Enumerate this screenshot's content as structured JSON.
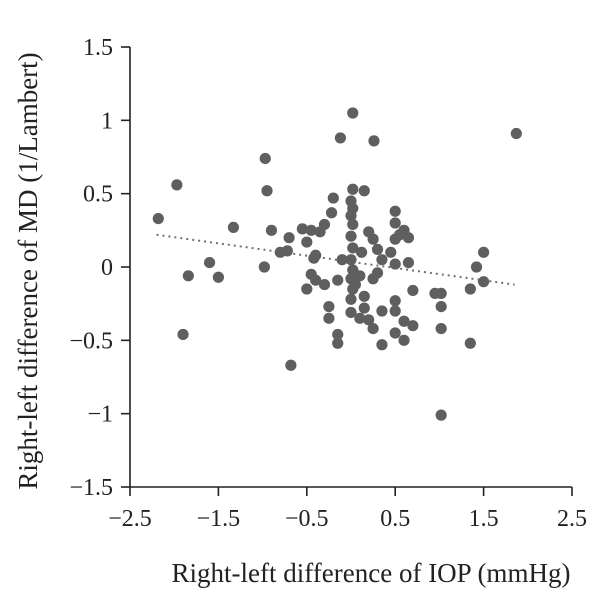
{
  "chart_data": {
    "type": "scatter",
    "xlabel": "Right-left difference of IOP (mmHg)",
    "ylabel": "Right-left difference of MD (1/Lambert)",
    "xlim": [
      -2.5,
      2.5
    ],
    "ylim": [
      -1.5,
      1.5
    ],
    "x_ticks": [
      -2.5,
      -1.5,
      -0.5,
      0.5,
      1.5,
      2.5
    ],
    "y_ticks": [
      1.5,
      1,
      0.5,
      0,
      -0.5,
      -1,
      -1.5
    ],
    "x_tick_labels": [
      "−2.5",
      "−1.5",
      "−0.5",
      "0.5",
      "1.5",
      "2.5"
    ],
    "y_tick_labels": [
      "1.5",
      "1",
      "0.5",
      "0",
      "−0.5",
      "−1",
      "−1.5"
    ],
    "grid": false,
    "trendline": {
      "style": "dotted",
      "x": [
        -2.2,
        1.85
      ],
      "y": [
        0.22,
        -0.12
      ]
    },
    "series": [
      {
        "color": "#5f5f5f",
        "points": [
          [
            0.02,
            1.05
          ],
          [
            -0.12,
            0.88
          ],
          [
            0.26,
            0.86
          ],
          [
            1.87,
            0.91
          ],
          [
            -0.97,
            0.74
          ],
          [
            -1.97,
            0.56
          ],
          [
            -0.95,
            0.52
          ],
          [
            -2.18,
            0.33
          ],
          [
            -1.33,
            0.27
          ],
          [
            -0.9,
            0.25
          ],
          [
            -1.6,
            0.03
          ],
          [
            -1.84,
            -0.06
          ],
          [
            -1.5,
            -0.07
          ],
          [
            -1.9,
            -0.46
          ],
          [
            -0.68,
            -0.67
          ],
          [
            -0.98,
            0.0
          ],
          [
            -0.8,
            0.1
          ],
          [
            -0.72,
            0.11
          ],
          [
            -0.7,
            0.2
          ],
          [
            -0.55,
            0.26
          ],
          [
            -0.45,
            0.25
          ],
          [
            -0.5,
            0.17
          ],
          [
            -0.42,
            0.06
          ],
          [
            -0.4,
            0.08
          ],
          [
            -0.35,
            0.24
          ],
          [
            -0.3,
            0.29
          ],
          [
            -0.22,
            0.37
          ],
          [
            -0.2,
            0.47
          ],
          [
            -0.25,
            -0.27
          ],
          [
            -0.15,
            -0.09
          ],
          [
            -0.1,
            0.05
          ],
          [
            -0.3,
            -0.12
          ],
          [
            -0.25,
            -0.35
          ],
          [
            -0.15,
            -0.46
          ],
          [
            -0.15,
            -0.52
          ],
          [
            -0.45,
            -0.05
          ],
          [
            -0.5,
            -0.15
          ],
          [
            -0.4,
            -0.09
          ],
          [
            0.02,
            0.53
          ],
          [
            0.0,
            0.45
          ],
          [
            0.02,
            0.4
          ],
          [
            0.0,
            0.35
          ],
          [
            0.02,
            0.29
          ],
          [
            0.0,
            0.21
          ],
          [
            0.02,
            0.13
          ],
          [
            0.0,
            0.05
          ],
          [
            0.02,
            -0.02
          ],
          [
            0.0,
            -0.08
          ],
          [
            0.02,
            -0.15
          ],
          [
            0.0,
            -0.22
          ],
          [
            0.0,
            -0.31
          ],
          [
            0.05,
            -0.12
          ],
          [
            0.1,
            -0.06
          ],
          [
            0.12,
            0.1
          ],
          [
            0.15,
            0.52
          ],
          [
            0.2,
            0.24
          ],
          [
            0.25,
            0.19
          ],
          [
            0.3,
            0.12
          ],
          [
            0.35,
            0.05
          ],
          [
            0.15,
            -0.2
          ],
          [
            0.15,
            -0.28
          ],
          [
            0.2,
            -0.36
          ],
          [
            0.25,
            -0.08
          ],
          [
            0.3,
            -0.04
          ],
          [
            0.35,
            -0.3
          ],
          [
            0.35,
            -0.53
          ],
          [
            0.25,
            -0.42
          ],
          [
            0.1,
            -0.35
          ],
          [
            0.5,
            0.38
          ],
          [
            0.5,
            0.3
          ],
          [
            0.55,
            0.22
          ],
          [
            0.6,
            0.25
          ],
          [
            0.65,
            0.2
          ],
          [
            0.5,
            0.19
          ],
          [
            0.45,
            0.1
          ],
          [
            0.5,
            0.02
          ],
          [
            0.65,
            0.03
          ],
          [
            0.7,
            -0.16
          ],
          [
            0.5,
            -0.23
          ],
          [
            0.5,
            -0.3
          ],
          [
            0.6,
            -0.37
          ],
          [
            0.7,
            -0.4
          ],
          [
            0.5,
            -0.45
          ],
          [
            0.6,
            -0.5
          ],
          [
            0.95,
            -0.18
          ],
          [
            1.02,
            -0.18
          ],
          [
            1.02,
            -0.27
          ],
          [
            1.02,
            -0.42
          ],
          [
            1.02,
            -1.01
          ],
          [
            1.35,
            -0.15
          ],
          [
            1.35,
            -0.52
          ],
          [
            1.42,
            0.0
          ],
          [
            1.5,
            0.1
          ],
          [
            1.5,
            -0.1
          ]
        ]
      }
    ]
  }
}
